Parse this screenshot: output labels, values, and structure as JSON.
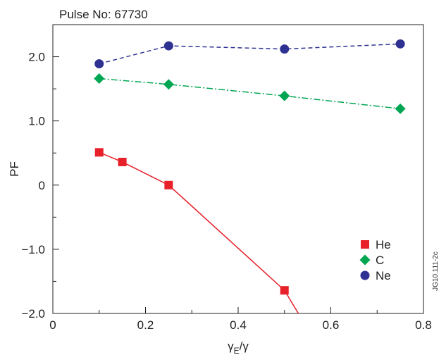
{
  "chart_data": {
    "type": "line",
    "title": "Pulse No: 67730",
    "xlabel": "γE/γ",
    "ylabel": "PF",
    "xlim": [
      0,
      0.8
    ],
    "ylim": [
      -2.0,
      2.5
    ],
    "x_ticks": [
      "0",
      "0.2",
      "0.4",
      "0.6",
      "0.8"
    ],
    "y_ticks": [
      "−2.0",
      "−1.0",
      "0",
      "1.0",
      "2.0"
    ],
    "grid": false,
    "legend_position": "bottom-right",
    "side_label": "JG10.111-2c",
    "series": [
      {
        "name": "He",
        "color": "#e8202a",
        "marker": "square",
        "line": "solid",
        "x": [
          0.1,
          0.15,
          0.25,
          0.5,
          0.53
        ],
        "y": [
          0.51,
          0.36,
          0.0,
          -1.64,
          -2.0
        ],
        "marker_count": 4
      },
      {
        "name": "C",
        "color": "#00a651",
        "marker": "diamond",
        "line": "dash-dot",
        "x": [
          0.1,
          0.25,
          0.5,
          0.75
        ],
        "y": [
          1.66,
          1.57,
          1.39,
          1.19
        ],
        "marker_count": 4
      },
      {
        "name": "Ne",
        "color": "#2e3192",
        "marker": "circle",
        "line": "dashed",
        "x": [
          0.1,
          0.25,
          0.5,
          0.75
        ],
        "y": [
          1.89,
          2.17,
          2.12,
          2.2
        ],
        "marker_count": 4
      }
    ]
  }
}
